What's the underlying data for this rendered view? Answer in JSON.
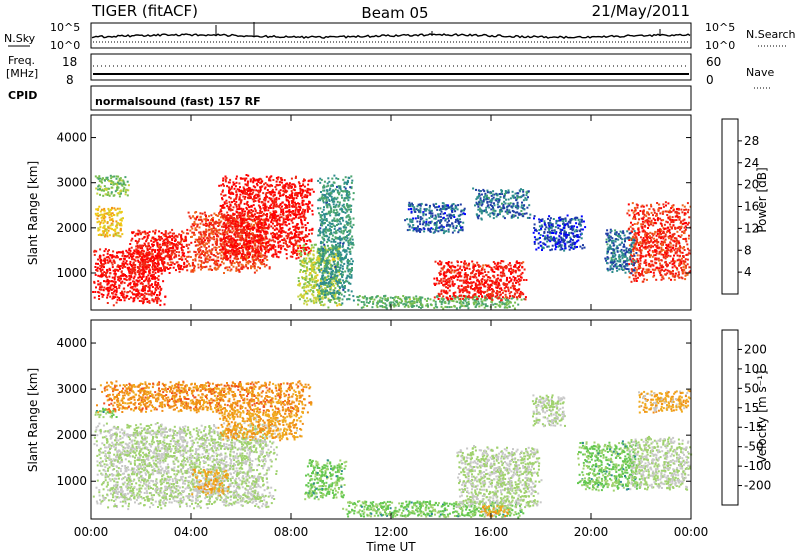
{
  "header": {
    "title_left": "TIGER (fitACF)",
    "title_center": "Beam 05",
    "title_right": "21/May/2011"
  },
  "top_panels": {
    "nsky_label": "N.Sky",
    "nsearch_label": "N.Search",
    "nsky_scale": [
      "10^5",
      "10^0"
    ],
    "nsearch_scale": [
      "10^5",
      "10^0"
    ],
    "freq_label_1": "Freq.",
    "freq_label_2": "[MHz]",
    "freq_ticks": [
      "18",
      "8"
    ],
    "nave_label": "Nave",
    "nave_ticks": [
      "60",
      "0"
    ],
    "cpid_label": "CPID",
    "cpid_text": "normalsound (fast) 157 RF"
  },
  "x_axis": {
    "label": "Time UT",
    "ticks": [
      "00:00",
      "04:00",
      "08:00",
      "12:00",
      "16:00",
      "20:00",
      "00:00"
    ]
  },
  "chart_data": [
    {
      "type": "heatmap",
      "parameter": "Power",
      "ylabel": "Slant Range [km]",
      "ylim": [
        180,
        4500
      ],
      "yticks": [
        "4000",
        "3000",
        "2000",
        "1000"
      ],
      "xlim_hours": [
        0,
        24
      ],
      "colorbar": {
        "label": "Power [dB]",
        "ticks": [
          "28",
          "24",
          "20",
          "16",
          "12",
          "8",
          "4"
        ],
        "range": [
          0,
          30
        ]
      },
      "palette": [
        "#0000ff",
        "#1e3ca5",
        "#2d8c8c",
        "#4aa56e",
        "#78be50",
        "#c8d23c",
        "#f0c814",
        "#f09614",
        "#f0641e",
        "#f02814",
        "#ff0000"
      ],
      "regions": [
        {
          "t": [
            0.0,
            3.0
          ],
          "r": [
            300,
            1600
          ],
          "v": 28
        },
        {
          "t": [
            1.5,
            4.0
          ],
          "r": [
            1000,
            2000
          ],
          "v": 27
        },
        {
          "t": [
            0.1,
            1.3
          ],
          "r": [
            1800,
            2500
          ],
          "v": 18
        },
        {
          "t": [
            0.1,
            1.5
          ],
          "r": [
            2700,
            3200
          ],
          "v": 12
        },
        {
          "t": [
            3.8,
            7.2
          ],
          "r": [
            1000,
            2400
          ],
          "v": 25
        },
        {
          "t": [
            5.0,
            8.9
          ],
          "r": [
            1300,
            3200
          ],
          "v": 28
        },
        {
          "t": [
            8.2,
            10.0
          ],
          "r": [
            250,
            1700
          ],
          "v": 14
        },
        {
          "t": [
            9.0,
            10.5
          ],
          "r": [
            300,
            3200
          ],
          "v": 8
        },
        {
          "t": [
            10.4,
            17.5
          ],
          "r": [
            230,
            520
          ],
          "v": 11
        },
        {
          "t": [
            13.6,
            17.4
          ],
          "r": [
            400,
            1300
          ],
          "v": 27
        },
        {
          "t": [
            12.5,
            15.0
          ],
          "r": [
            1900,
            2600
          ],
          "v": 5
        },
        {
          "t": [
            15.2,
            17.6
          ],
          "r": [
            2200,
            2900
          ],
          "v": 6
        },
        {
          "t": [
            17.6,
            19.8
          ],
          "r": [
            1500,
            2300
          ],
          "v": 4
        },
        {
          "t": [
            21.4,
            24.0
          ],
          "r": [
            800,
            2600
          ],
          "v": 26
        },
        {
          "t": [
            20.5,
            21.8
          ],
          "r": [
            1000,
            2000
          ],
          "v": 6
        }
      ]
    },
    {
      "type": "heatmap",
      "parameter": "Velocity",
      "ylabel": "Slant Range [km]",
      "ylim": [
        180,
        4500
      ],
      "yticks": [
        "4000",
        "3000",
        "2000",
        "1000"
      ],
      "xlim_hours": [
        0,
        24
      ],
      "colorbar": {
        "label": "Velocity [m s⁻¹]",
        "ticks": [
          "200",
          "100",
          "50",
          "15",
          "-15",
          "-50",
          "-100",
          "-200"
        ],
        "range": [
          -250,
          250
        ]
      },
      "palette": [
        "#ff0000",
        "#f0501e",
        "#f08c14",
        "#f0aa1e",
        "#c8c8c8",
        "#a0d26e",
        "#64c850",
        "#2d8c8c",
        "#1e3ca5",
        "#0000ff"
      ],
      "regions": [
        {
          "t": [
            0.0,
            7.5
          ],
          "r": [
            400,
            2300
          ],
          "v": 0
        },
        {
          "t": [
            0.1,
            1.0
          ],
          "r": [
            2400,
            2600
          ],
          "v": 60
        },
        {
          "t": [
            0.1,
            9.0
          ],
          "r": [
            2500,
            3200
          ],
          "v": -120
        },
        {
          "t": [
            5.0,
            8.5
          ],
          "r": [
            1900,
            2600
          ],
          "v": -90
        },
        {
          "t": [
            4.0,
            5.5
          ],
          "r": [
            700,
            1300
          ],
          "v": -70
        },
        {
          "t": [
            8.5,
            10.2
          ],
          "r": [
            600,
            1500
          ],
          "v": 60
        },
        {
          "t": [
            10.0,
            17.5
          ],
          "r": [
            230,
            600
          ],
          "v": 60
        },
        {
          "t": [
            14.5,
            18.0
          ],
          "r": [
            400,
            1800
          ],
          "v": 0
        },
        {
          "t": [
            15.5,
            16.7
          ],
          "r": [
            230,
            500
          ],
          "v": -70
        },
        {
          "t": [
            17.6,
            19.0
          ],
          "r": [
            2200,
            2900
          ],
          "v": 0
        },
        {
          "t": [
            19.4,
            22.0
          ],
          "r": [
            800,
            1900
          ],
          "v": 60
        },
        {
          "t": [
            21.4,
            24.0
          ],
          "r": [
            800,
            2000
          ],
          "v": 0
        },
        {
          "t": [
            21.8,
            24.0
          ],
          "r": [
            2500,
            3000
          ],
          "v": -80
        }
      ]
    }
  ]
}
